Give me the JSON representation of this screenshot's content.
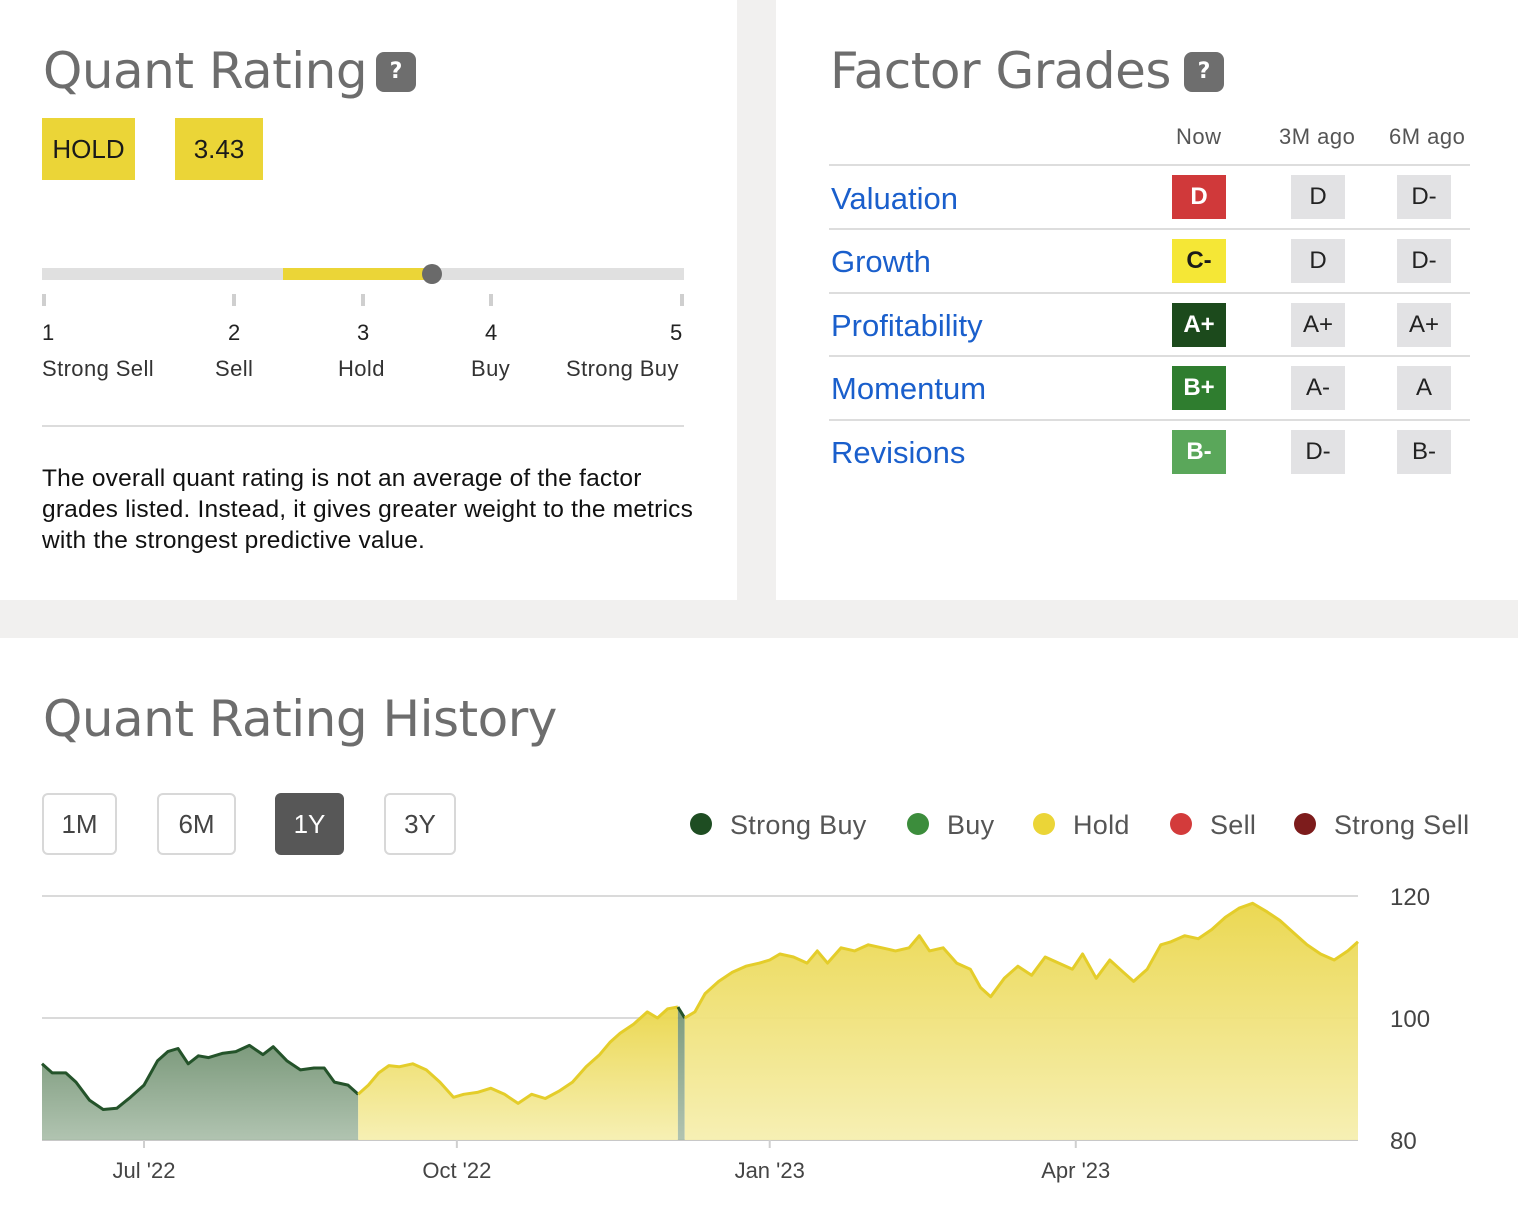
{
  "quant_rating": {
    "title": "Quant Rating",
    "help_icon": "?",
    "rating_label": "HOLD",
    "rating_value": "3.43",
    "scale_value": 3.43,
    "scale": [
      {
        "num": "1",
        "label": "Strong Sell"
      },
      {
        "num": "2",
        "label": "Sell"
      },
      {
        "num": "3",
        "label": "Hold"
      },
      {
        "num": "4",
        "label": "Buy"
      },
      {
        "num": "5",
        "label": "Strong Buy"
      }
    ],
    "note": "The overall quant rating is not an average of the factor grades listed. Instead, it gives greater weight to the metrics with the strongest predictive value."
  },
  "factor_grades": {
    "title": "Factor Grades",
    "help_icon": "?",
    "headers": [
      "Now",
      "3M ago",
      "6M ago"
    ],
    "rows": [
      {
        "name": "Valuation",
        "now": "D",
        "m3": "D",
        "m6": "D-",
        "now_color": "#d0393a",
        "now_text_color": "#ffffff"
      },
      {
        "name": "Growth",
        "now": "C-",
        "m3": "D",
        "m6": "D-",
        "now_color": "#f5e736",
        "now_text_color": "#1a1a1a"
      },
      {
        "name": "Profitability",
        "now": "A+",
        "m3": "A+",
        "m6": "A+",
        "now_color": "#1c4a1c",
        "now_text_color": "#ffffff"
      },
      {
        "name": "Momentum",
        "now": "B+",
        "m3": "A-",
        "m6": "A",
        "now_color": "#2f7d2f",
        "now_text_color": "#ffffff"
      },
      {
        "name": "Revisions",
        "now": "B-",
        "m3": "D-",
        "m6": "B-",
        "now_color": "#5aa75a",
        "now_text_color": "#ffffff"
      }
    ]
  },
  "history": {
    "title": "Quant Rating History",
    "ranges": [
      {
        "label": "1M",
        "active": false
      },
      {
        "label": "6M",
        "active": false
      },
      {
        "label": "1Y",
        "active": true
      },
      {
        "label": "3Y",
        "active": false
      }
    ],
    "legend": [
      {
        "label": "Strong Buy",
        "color": "#1e4d22"
      },
      {
        "label": "Buy",
        "color": "#3c8d3c"
      },
      {
        "label": "Hold",
        "color": "#ebd537"
      },
      {
        "label": "Sell",
        "color": "#d33b3b"
      },
      {
        "label": "Strong Sell",
        "color": "#7d1c1c"
      }
    ]
  },
  "chart_data": {
    "type": "area",
    "x_unit": "date",
    "y_ticks": [
      "80",
      "100",
      "120"
    ],
    "ylim": [
      80,
      120
    ],
    "x_ticks": [
      {
        "label": "Jul '22",
        "date": "2022-07-01"
      },
      {
        "label": "Oct '22",
        "date": "2022-10-01"
      },
      {
        "label": "Jan '23",
        "date": "2023-01-01"
      },
      {
        "label": "Apr '23",
        "date": "2023-04-01"
      }
    ],
    "xlim": [
      "2022-06-01",
      "2023-06-23"
    ],
    "gridlines": true,
    "points": [
      [
        "2022-06-01",
        92.5
      ],
      [
        "2022-06-04",
        91.0
      ],
      [
        "2022-06-08",
        91.0
      ],
      [
        "2022-06-11",
        89.5
      ],
      [
        "2022-06-15",
        86.5
      ],
      [
        "2022-06-19",
        85.0
      ],
      [
        "2022-06-23",
        85.2
      ],
      [
        "2022-06-27",
        87.0
      ],
      [
        "2022-07-01",
        89.0
      ],
      [
        "2022-07-05",
        93.0
      ],
      [
        "2022-07-08",
        94.5
      ],
      [
        "2022-07-11",
        95.0
      ],
      [
        "2022-07-14",
        92.5
      ],
      [
        "2022-07-17",
        93.8
      ],
      [
        "2022-07-20",
        93.5
      ],
      [
        "2022-07-24",
        94.2
      ],
      [
        "2022-07-28",
        94.5
      ],
      [
        "2022-08-01",
        95.5
      ],
      [
        "2022-08-05",
        94.0
      ],
      [
        "2022-08-08",
        95.3
      ],
      [
        "2022-08-12",
        93.0
      ],
      [
        "2022-08-16",
        91.5
      ],
      [
        "2022-08-20",
        91.8
      ],
      [
        "2022-08-23",
        91.8
      ],
      [
        "2022-08-26",
        89.5
      ],
      [
        "2022-08-30",
        89.0
      ],
      [
        "2022-09-02",
        87.5
      ],
      [
        "2022-09-05",
        89.0
      ],
      [
        "2022-09-08",
        91.0
      ],
      [
        "2022-09-11",
        92.2
      ],
      [
        "2022-09-14",
        92.0
      ],
      [
        "2022-09-18",
        92.5
      ],
      [
        "2022-09-22",
        91.5
      ],
      [
        "2022-09-26",
        89.5
      ],
      [
        "2022-09-30",
        87.0
      ],
      [
        "2022-10-03",
        87.5
      ],
      [
        "2022-10-07",
        87.8
      ],
      [
        "2022-10-11",
        88.5
      ],
      [
        "2022-10-15",
        87.5
      ],
      [
        "2022-10-19",
        86.0
      ],
      [
        "2022-10-23",
        87.5
      ],
      [
        "2022-10-27",
        86.8
      ],
      [
        "2022-10-31",
        88.0
      ],
      [
        "2022-11-04",
        89.5
      ],
      [
        "2022-11-08",
        92.0
      ],
      [
        "2022-11-12",
        94.0
      ],
      [
        "2022-11-15",
        96.0
      ],
      [
        "2022-11-18",
        97.5
      ],
      [
        "2022-11-22",
        99.0
      ],
      [
        "2022-11-26",
        101.0
      ],
      [
        "2022-11-29",
        100.0
      ],
      [
        "2022-12-02",
        101.5
      ],
      [
        "2022-12-05",
        101.8
      ],
      [
        "2022-12-07",
        100.0
      ],
      [
        "2022-12-10",
        101.0
      ],
      [
        "2022-12-13",
        104.0
      ],
      [
        "2022-12-17",
        106.0
      ],
      [
        "2022-12-21",
        107.5
      ],
      [
        "2022-12-25",
        108.5
      ],
      [
        "2022-12-29",
        109.0
      ],
      [
        "2023-01-01",
        109.5
      ],
      [
        "2023-01-04",
        110.5
      ],
      [
        "2023-01-08",
        110.0
      ],
      [
        "2023-01-12",
        109.0
      ],
      [
        "2023-01-15",
        111.0
      ],
      [
        "2023-01-18",
        109.0
      ],
      [
        "2023-01-22",
        111.5
      ],
      [
        "2023-01-26",
        111.0
      ],
      [
        "2023-01-30",
        112.0
      ],
      [
        "2023-02-03",
        111.5
      ],
      [
        "2023-02-07",
        111.0
      ],
      [
        "2023-02-11",
        111.5
      ],
      [
        "2023-02-14",
        113.5
      ],
      [
        "2023-02-17",
        111.0
      ],
      [
        "2023-02-21",
        111.5
      ],
      [
        "2023-02-25",
        109.0
      ],
      [
        "2023-03-01",
        108.0
      ],
      [
        "2023-03-04",
        105.0
      ],
      [
        "2023-03-07",
        103.5
      ],
      [
        "2023-03-11",
        106.5
      ],
      [
        "2023-03-15",
        108.5
      ],
      [
        "2023-03-19",
        107.0
      ],
      [
        "2023-03-23",
        110.0
      ],
      [
        "2023-03-27",
        109.0
      ],
      [
        "2023-03-31",
        108.0
      ],
      [
        "2023-04-03",
        110.5
      ],
      [
        "2023-04-07",
        106.5
      ],
      [
        "2023-04-11",
        109.5
      ],
      [
        "2023-04-15",
        107.5
      ],
      [
        "2023-04-18",
        106.0
      ],
      [
        "2023-04-22",
        108.0
      ],
      [
        "2023-04-26",
        112.0
      ],
      [
        "2023-04-29",
        112.5
      ],
      [
        "2023-05-03",
        113.5
      ],
      [
        "2023-05-07",
        113.0
      ],
      [
        "2023-05-11",
        114.5
      ],
      [
        "2023-05-15",
        116.5
      ],
      [
        "2023-05-19",
        118.0
      ],
      [
        "2023-05-23",
        118.8
      ],
      [
        "2023-05-27",
        117.5
      ],
      [
        "2023-05-31",
        116.0
      ],
      [
        "2023-06-04",
        114.0
      ],
      [
        "2023-06-08",
        112.0
      ],
      [
        "2023-06-12",
        110.5
      ],
      [
        "2023-06-16",
        109.5
      ],
      [
        "2023-06-20",
        111.0
      ],
      [
        "2023-06-23",
        112.5
      ]
    ],
    "rating_segments": [
      {
        "rating": "Strong Buy",
        "from": "2022-06-01",
        "to": "2022-09-02"
      },
      {
        "rating": "Hold",
        "from": "2022-09-02",
        "to": "2022-12-05"
      },
      {
        "rating": "Strong Buy",
        "from": "2022-12-05",
        "to": "2022-12-07"
      },
      {
        "rating": "Hold",
        "from": "2022-12-07",
        "to": "2023-06-23"
      }
    ]
  }
}
